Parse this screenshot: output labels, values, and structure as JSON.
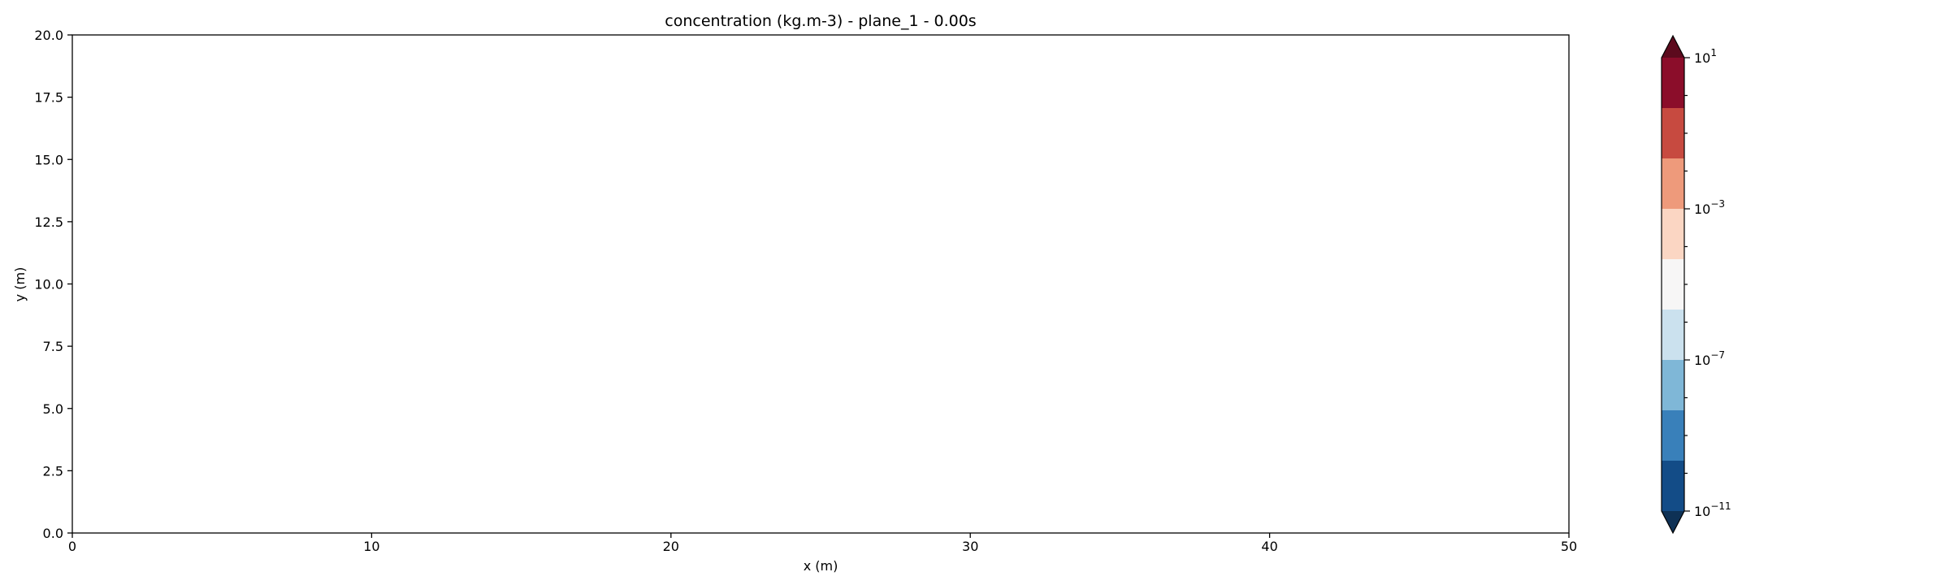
{
  "chart_data": {
    "type": "heatmap",
    "title": "concentration (kg.m-3) - plane_1 - 0.00s",
    "xlabel": "x (m)",
    "ylabel": "y (m)",
    "xlim": [
      0,
      50
    ],
    "ylim": [
      0,
      20
    ],
    "x_ticks": [
      0,
      10,
      20,
      30,
      40,
      50
    ],
    "x_tick_labels": [
      "0",
      "10",
      "20",
      "30",
      "40",
      "50"
    ],
    "y_ticks": [
      0,
      2.5,
      5,
      7.5,
      10,
      12.5,
      15,
      17.5,
      20
    ],
    "y_tick_labels": [
      "0.0",
      "2.5",
      "5.0",
      "7.5",
      "10.0",
      "12.5",
      "15.0",
      "17.5",
      "20.0"
    ],
    "grid": false,
    "data": [],
    "colorbar": {
      "scale": "log",
      "extend": "both",
      "levels_exponent": [
        -11,
        -10,
        -9,
        -8,
        -7,
        -6,
        -5,
        -4,
        -3,
        -2,
        -1,
        0,
        1
      ],
      "labeled_exponents": [
        -11,
        -7,
        -3,
        1
      ],
      "labels": [
        {
          "base": "10",
          "exp": "−11"
        },
        {
          "base": "10",
          "exp": "−7"
        },
        {
          "base": "10",
          "exp": "−3"
        },
        {
          "base": "10",
          "exp": "1"
        }
      ],
      "under_color": "#0e3155",
      "over_color": "#5c0a1d",
      "band_colors": [
        "#134c87",
        "#3980ba",
        "#7fb7d7",
        "#cbe1ee",
        "#f7f6f6",
        "#fbd6c3",
        "#ee9a7b",
        "#c74a40",
        "#8b0d2a"
      ]
    }
  }
}
